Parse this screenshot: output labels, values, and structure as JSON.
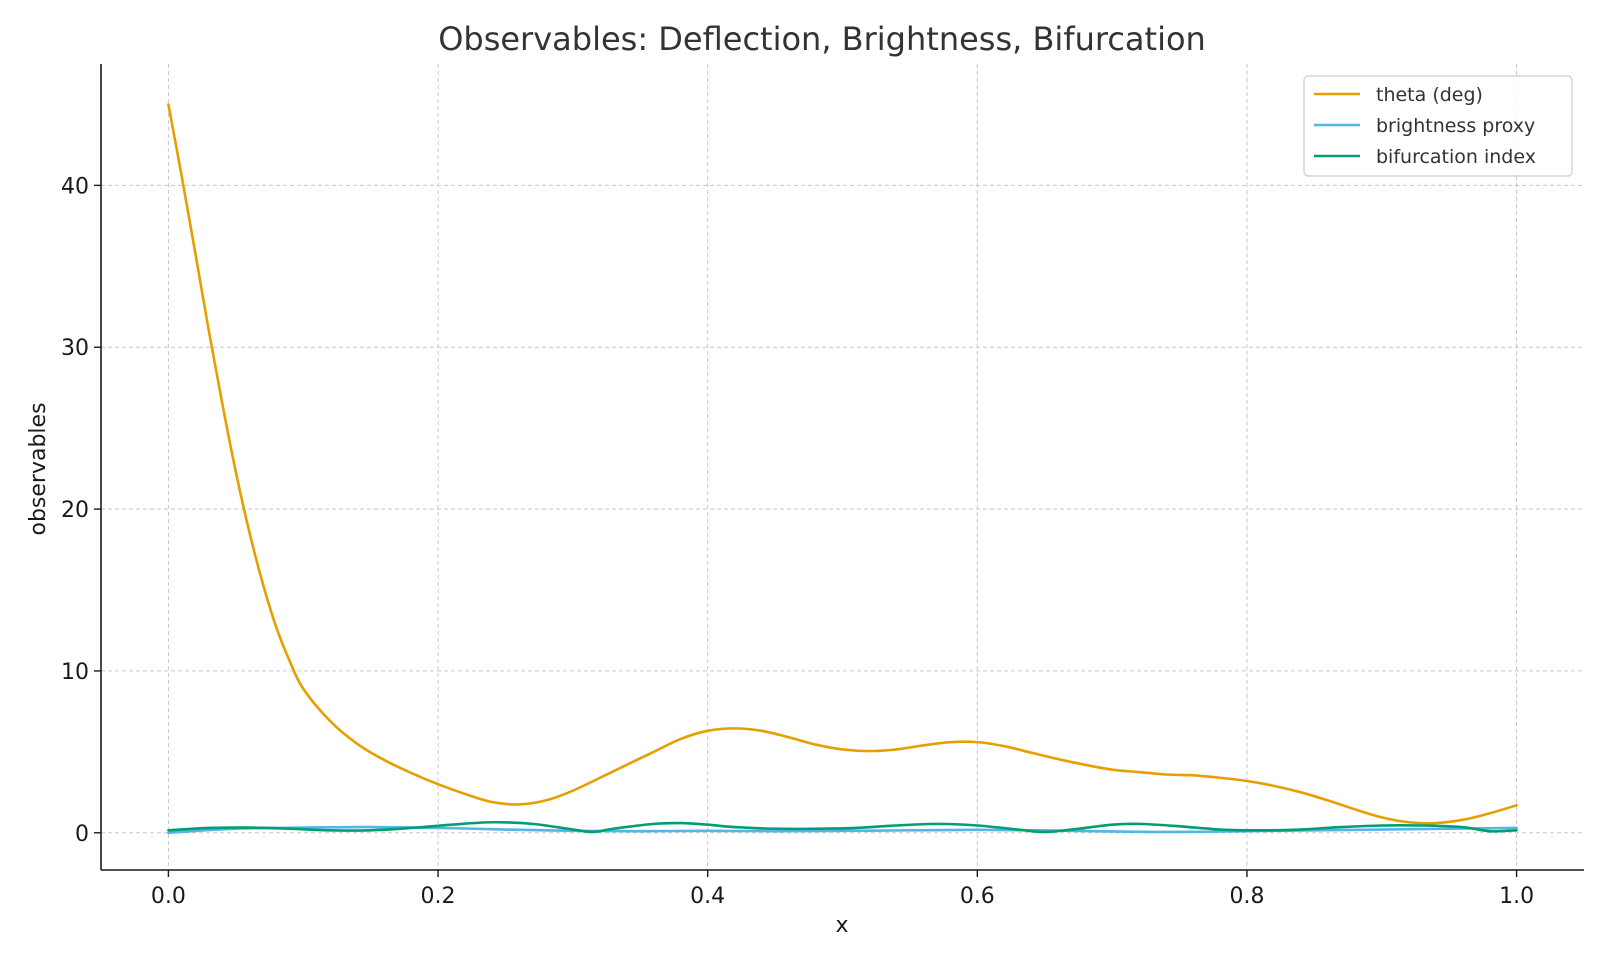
{
  "chart_data": {
    "type": "line",
    "title": "Observables: Deflection, Brightness, Bifurcation",
    "xlabel": "x",
    "ylabel": "observables",
    "xlim": [
      -0.05,
      1.05
    ],
    "ylim": [
      -2.3,
      47.5
    ],
    "xticks": [
      0.0,
      0.2,
      0.4,
      0.6,
      0.8,
      1.0
    ],
    "xtick_labels": [
      "0.0",
      "0.2",
      "0.4",
      "0.6",
      "0.8",
      "1.0"
    ],
    "yticks": [
      0,
      10,
      20,
      30,
      40
    ],
    "ytick_labels": [
      "0",
      "10",
      "20",
      "30",
      "40"
    ],
    "grid": true,
    "legend_position": "top-right",
    "series": [
      {
        "name": "theta (deg)",
        "color": "#E69F00",
        "x": [
          0.0,
          0.01,
          0.02,
          0.03,
          0.04,
          0.05,
          0.06,
          0.07,
          0.08,
          0.09,
          0.1,
          0.12,
          0.14,
          0.16,
          0.18,
          0.2,
          0.22,
          0.24,
          0.26,
          0.28,
          0.3,
          0.33,
          0.36,
          0.38,
          0.4,
          0.42,
          0.44,
          0.46,
          0.48,
          0.5,
          0.52,
          0.54,
          0.56,
          0.58,
          0.6,
          0.62,
          0.64,
          0.66,
          0.68,
          0.7,
          0.72,
          0.74,
          0.76,
          0.78,
          0.8,
          0.82,
          0.84,
          0.86,
          0.88,
          0.9,
          0.92,
          0.94,
          0.96,
          0.98,
          1.0
        ],
        "y": [
          45.0,
          40.5,
          35.8,
          31.0,
          26.5,
          22.3,
          18.6,
          15.4,
          12.7,
          10.6,
          8.9,
          6.9,
          5.5,
          4.5,
          3.7,
          3.0,
          2.4,
          1.9,
          1.75,
          2.0,
          2.6,
          3.8,
          5.0,
          5.8,
          6.3,
          6.45,
          6.3,
          5.9,
          5.45,
          5.15,
          5.05,
          5.15,
          5.4,
          5.6,
          5.6,
          5.35,
          4.95,
          4.55,
          4.2,
          3.9,
          3.75,
          3.6,
          3.55,
          3.4,
          3.2,
          2.9,
          2.5,
          2.0,
          1.45,
          0.95,
          0.65,
          0.6,
          0.8,
          1.2,
          1.7
        ]
      },
      {
        "name": "brightness proxy",
        "color": "#56B4E9",
        "x": [
          0.0,
          0.05,
          0.1,
          0.15,
          0.2,
          0.25,
          0.3,
          0.35,
          0.4,
          0.45,
          0.5,
          0.55,
          0.6,
          0.65,
          0.7,
          0.75,
          0.8,
          0.85,
          0.9,
          0.95,
          1.0
        ],
        "y": [
          0.0,
          0.25,
          0.32,
          0.35,
          0.3,
          0.2,
          0.12,
          0.1,
          0.12,
          0.1,
          0.12,
          0.15,
          0.18,
          0.15,
          0.08,
          0.05,
          0.1,
          0.15,
          0.2,
          0.25,
          0.3
        ]
      },
      {
        "name": "bifurcation index",
        "color": "#009E73",
        "x": [
          0.0,
          0.03,
          0.06,
          0.09,
          0.12,
          0.15,
          0.18,
          0.21,
          0.24,
          0.27,
          0.3,
          0.315,
          0.33,
          0.36,
          0.38,
          0.4,
          0.42,
          0.45,
          0.48,
          0.51,
          0.54,
          0.57,
          0.6,
          0.63,
          0.65,
          0.67,
          0.7,
          0.72,
          0.75,
          0.78,
          0.81,
          0.84,
          0.87,
          0.9,
          0.93,
          0.96,
          0.98,
          1.0
        ],
        "y": [
          0.15,
          0.3,
          0.32,
          0.25,
          0.15,
          0.15,
          0.3,
          0.5,
          0.65,
          0.55,
          0.2,
          0.05,
          0.25,
          0.55,
          0.6,
          0.5,
          0.35,
          0.25,
          0.25,
          0.3,
          0.45,
          0.55,
          0.45,
          0.2,
          0.05,
          0.2,
          0.5,
          0.55,
          0.4,
          0.2,
          0.15,
          0.2,
          0.35,
          0.45,
          0.45,
          0.35,
          0.1,
          0.15
        ]
      }
    ]
  }
}
